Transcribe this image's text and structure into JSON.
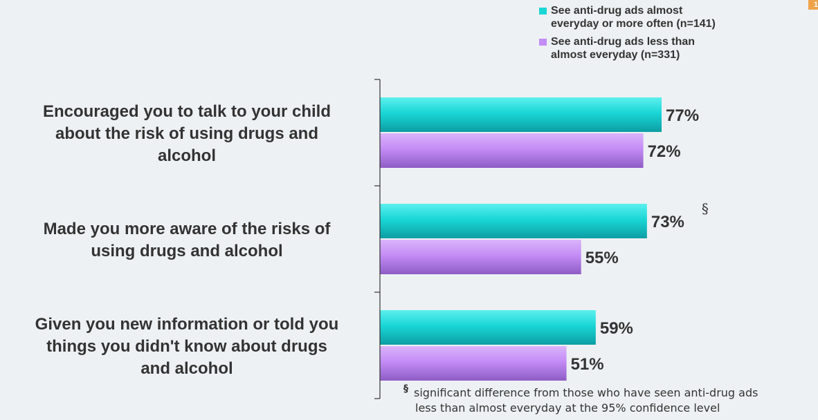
{
  "chart_data": {
    "type": "bar",
    "orientation": "horizontal",
    "categories": [
      "Encouraged you to talk to your child about the risk of using drugs and alcohol",
      "Made you more aware of the risks of using drugs and alcohol",
      "Given you new information or told you things you didn't know about drugs and alcohol"
    ],
    "category_lines": [
      [
        "Encouraged you to talk to your child",
        "about the risk of using drugs and",
        "alcohol"
      ],
      [
        "Made you more aware of the risks of",
        "using drugs and alcohol"
      ],
      [
        "Given you new information or told you",
        "things you didn't know about drugs",
        "and alcohol"
      ]
    ],
    "series": [
      {
        "name": "See anti-drug ads almost everyday or more often (n=141)",
        "legend_lines": [
          "See anti-drug ads almost",
          "everyday or more often (n=141)"
        ],
        "values": [
          77,
          73,
          59
        ],
        "labels": [
          "77%",
          "73%",
          "59%"
        ],
        "color": "#1ad6d6"
      },
      {
        "name": "See anti-drug ads less than almost everyday (n=331)",
        "legend_lines": [
          "See anti-drug ads less than",
          "almost everyday (n=331)"
        ],
        "values": [
          72,
          55,
          51
        ],
        "labels": [
          "72%",
          "55%",
          "51%"
        ],
        "color": "#c48cf5"
      }
    ],
    "annotations": [
      {
        "category_index": 1,
        "series_index": 0,
        "text": "§"
      }
    ],
    "xlim": [
      0,
      100
    ],
    "grid": false,
    "legend_position": "top-right"
  },
  "footnote": {
    "symbol": "§",
    "line1": "significant difference from those who have seen anti-drug ads",
    "line2": "less than almost everyday at the 95% confidence level"
  },
  "corner_badge": "1"
}
